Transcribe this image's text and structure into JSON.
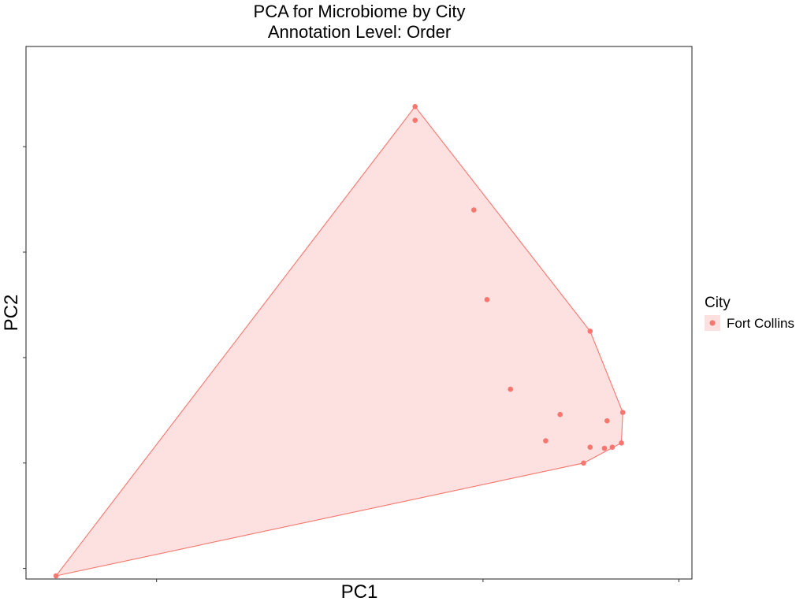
{
  "chart_data": {
    "type": "scatter",
    "title": "PCA for Microbiome by City",
    "subtitle": "Annotation Level: Order",
    "xlabel": "PC1",
    "ylabel": "PC2",
    "xlim": [
      -3.5,
      1.6
    ],
    "ylim": [
      -1.1,
      3.95
    ],
    "x_ticks": [
      -2.5,
      0.0,
      1.5
    ],
    "y_ticks": [
      -1.0,
      0.0,
      1.0,
      2.0,
      3.0
    ],
    "grid": false,
    "legend": {
      "title": "City",
      "placement": "right",
      "entries": [
        "Fort Collins"
      ]
    },
    "hull": true,
    "series": [
      {
        "name": "Fort Collins",
        "color": "#F8766D",
        "fill": "#FCE1E0",
        "points": [
          {
            "x": -3.27,
            "y": -1.07
          },
          {
            "x": 0.77,
            "y": 0.0
          },
          {
            "x": 1.07,
            "y": 0.48
          },
          {
            "x": 1.06,
            "y": 0.19
          },
          {
            "x": 0.99,
            "y": 0.15
          },
          {
            "x": 0.93,
            "y": 0.14
          },
          {
            "x": 0.82,
            "y": 0.15
          },
          {
            "x": 0.95,
            "y": 0.4
          },
          {
            "x": 0.82,
            "y": 1.25
          },
          {
            "x": 0.59,
            "y": 0.46
          },
          {
            "x": 0.48,
            "y": 0.21
          },
          {
            "x": 0.21,
            "y": 0.7
          },
          {
            "x": 0.03,
            "y": 1.55
          },
          {
            "x": -0.07,
            "y": 2.4
          },
          {
            "x": -0.52,
            "y": 3.25
          },
          {
            "x": -0.52,
            "y": 3.38
          }
        ]
      }
    ]
  }
}
